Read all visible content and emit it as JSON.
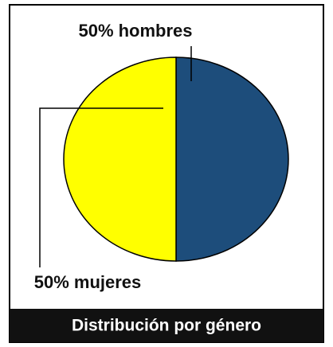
{
  "chart_data": {
    "type": "pie",
    "title": "Distribución por género",
    "values": [
      50,
      50
    ],
    "value_labels": [
      "50% hombres",
      "50% mujeres"
    ],
    "colors": [
      "#1d4d7b",
      "#ffff00"
    ]
  }
}
